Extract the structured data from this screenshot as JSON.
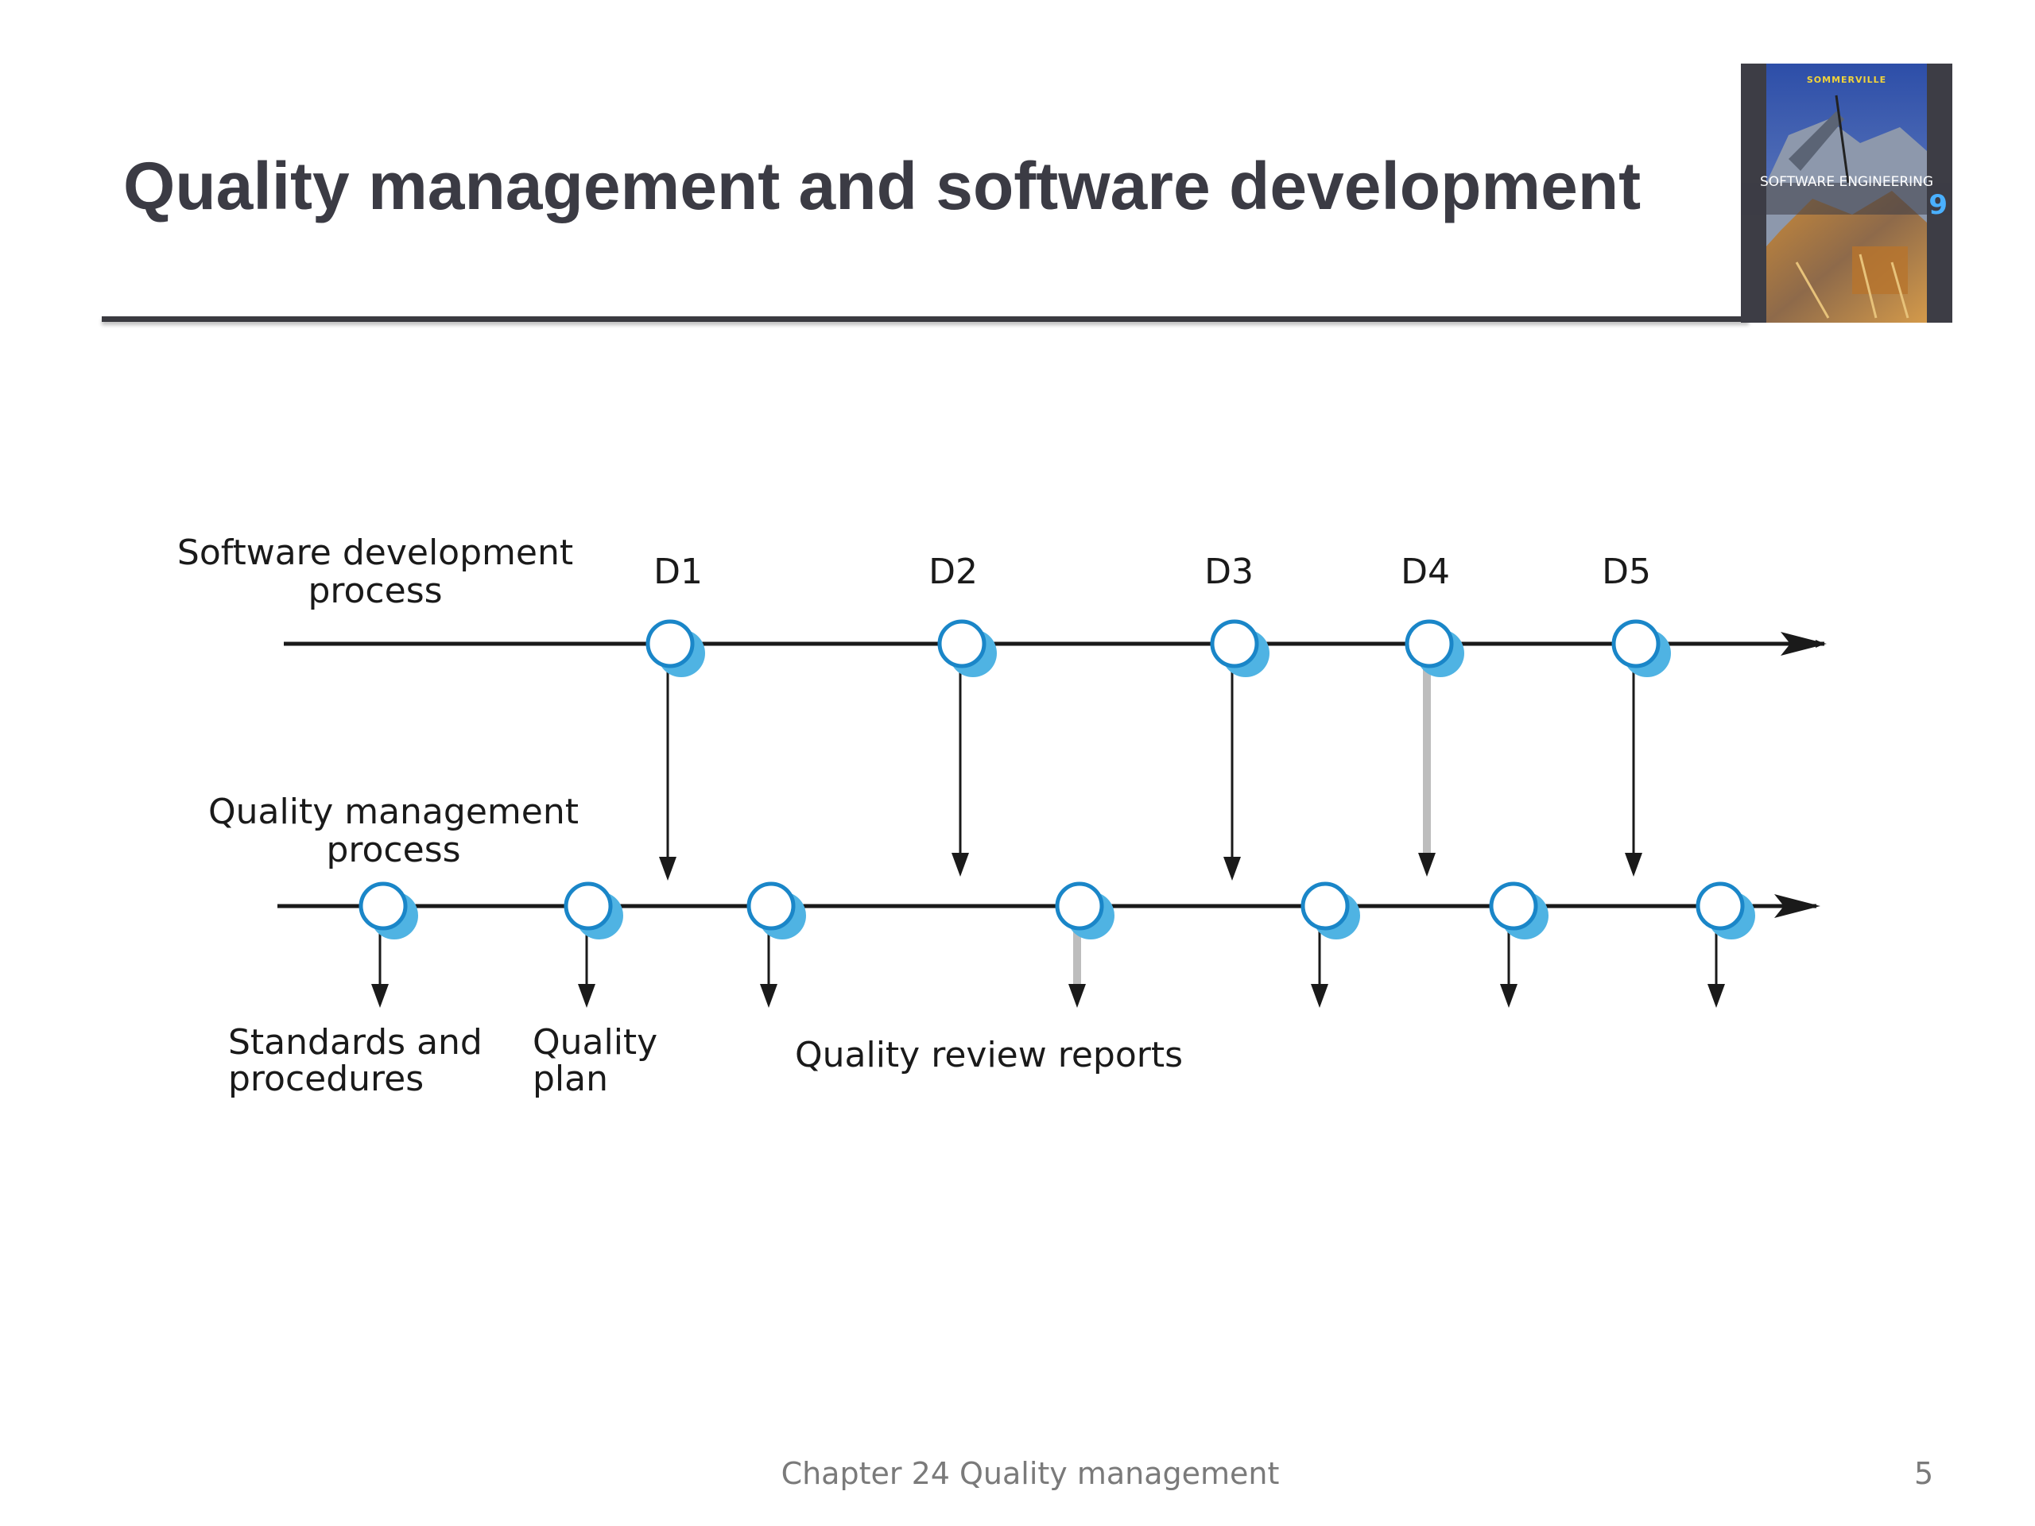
{
  "slide": {
    "title": "Quality management and software development",
    "footer": "Chapter 24 Quality management",
    "page_number": "5"
  },
  "cover": {
    "author": "SOMMERVILLE",
    "title": "SOFTWARE ENGINEERING",
    "edition": "9"
  },
  "diagram": {
    "dev_label_line1": "Software development",
    "dev_label_line2": "process",
    "qm_label_line1": "Quality management",
    "qm_label_line2": "process",
    "deliverables": [
      "D1",
      "D2",
      "D3",
      "D4",
      "D5"
    ],
    "standards_line1": "Standards and",
    "standards_line2": "procedures",
    "plan_line1": "Quality",
    "plan_line2": "plan",
    "review_reports": "Quality review reports"
  },
  "colors": {
    "title": "#3b3b44",
    "node_fill": "#ffffff",
    "node_stroke": "#1a86c8",
    "node_shadow": "#4fb3e3",
    "line": "#1a1a1a"
  }
}
